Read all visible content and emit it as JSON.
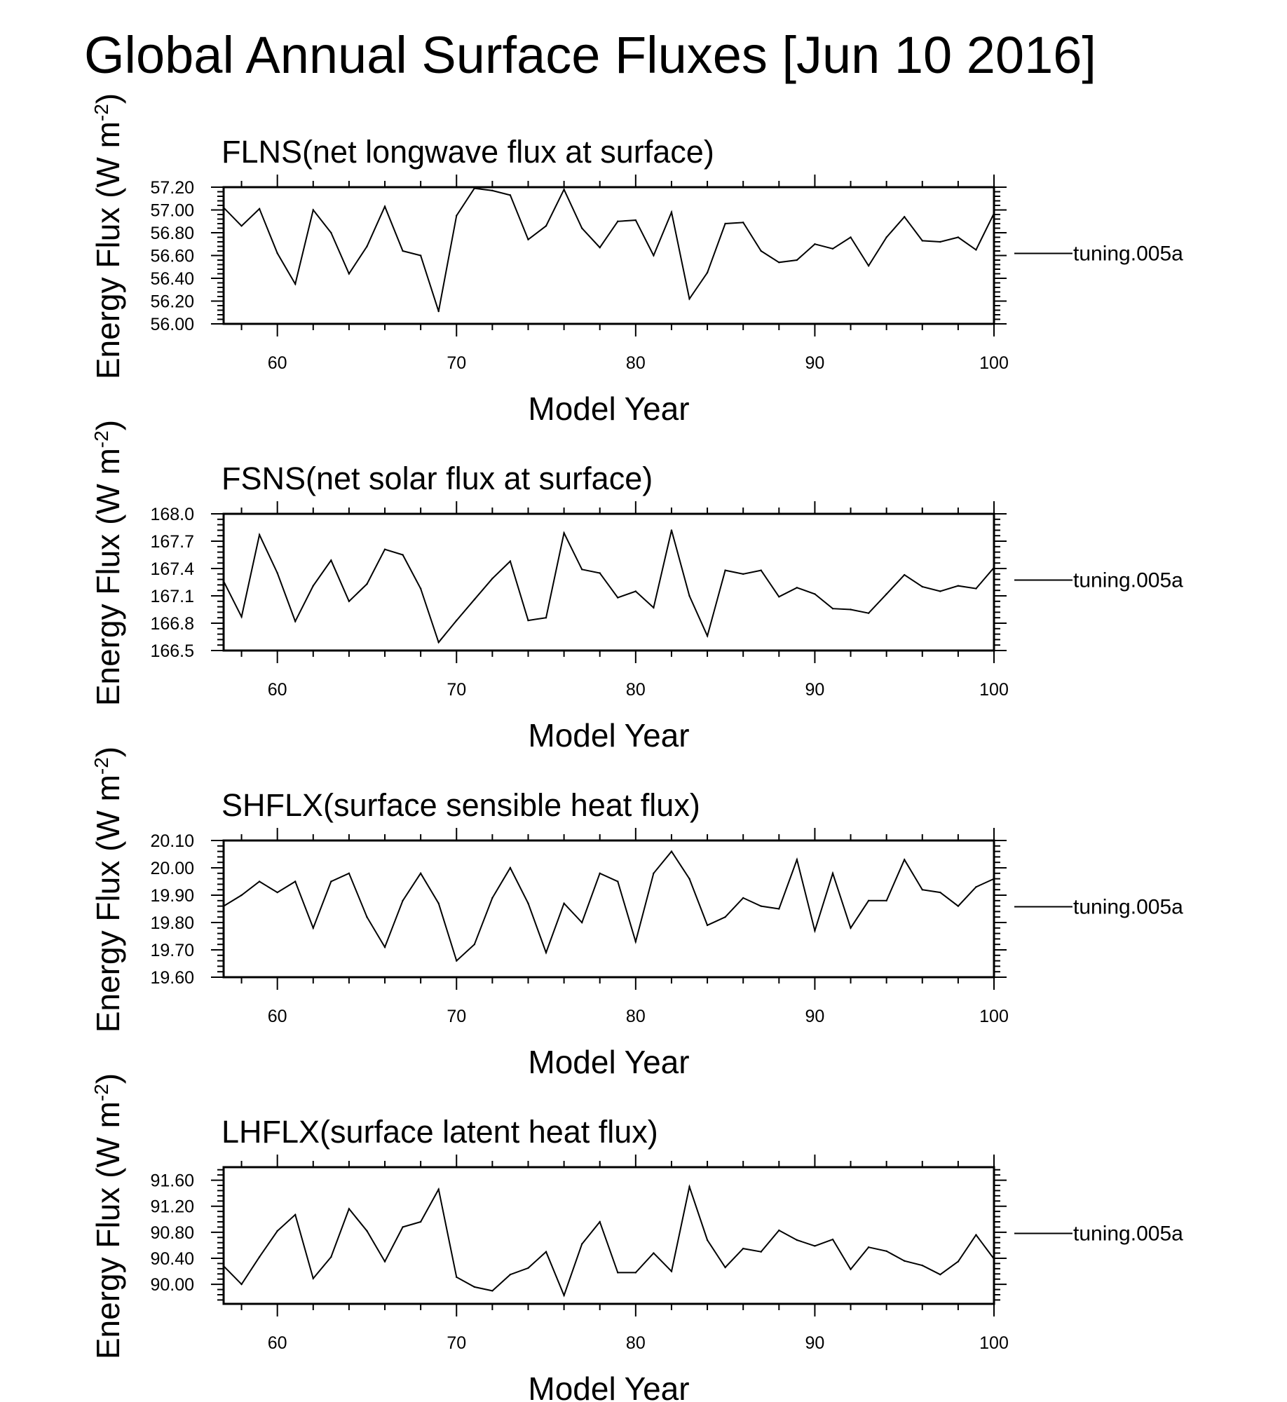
{
  "figure_title": "Global Annual Surface Fluxes [Jun 10 2016]",
  "chart_data": [
    {
      "type": "line",
      "title": "FLNS(net longwave flux at surface)",
      "xlabel": "Model Year",
      "ylabel": "Energy Flux (W m-2)",
      "xlim": [
        57,
        100
      ],
      "ylim": [
        56.0,
        57.2
      ],
      "xticks": [
        "60",
        "70",
        "80",
        "90",
        "100"
      ],
      "yticks": [
        "57.20",
        "57.00",
        "56.80",
        "56.60",
        "56.40",
        "56.20",
        "56.00"
      ],
      "series": [
        {
          "name": "tuning.005a",
          "x": [
            57,
            58,
            59,
            60,
            61,
            62,
            63,
            64,
            65,
            66,
            67,
            68,
            69,
            70,
            71,
            72,
            73,
            74,
            75,
            76,
            77,
            78,
            79,
            80,
            81,
            82,
            83,
            84,
            85,
            86,
            87,
            88,
            89,
            90,
            91,
            92,
            93,
            94,
            95,
            96,
            97,
            98,
            99,
            100
          ],
          "values": [
            57.02,
            56.86,
            57.01,
            56.62,
            56.35,
            57.0,
            56.8,
            56.44,
            56.68,
            57.03,
            56.64,
            56.6,
            56.11,
            56.95,
            57.19,
            57.17,
            57.13,
            56.74,
            56.86,
            57.18,
            56.84,
            56.67,
            56.9,
            56.91,
            56.6,
            56.98,
            56.22,
            56.45,
            56.88,
            56.89,
            56.64,
            56.54,
            56.56,
            56.7,
            56.66,
            56.76,
            56.51,
            56.76,
            56.94,
            56.73,
            56.72,
            56.76,
            56.65,
            56.97
          ]
        }
      ]
    },
    {
      "type": "line",
      "title": "FSNS(net solar flux at surface)",
      "xlabel": "Model Year",
      "ylabel": "Energy Flux (W m-2)",
      "xlim": [
        57,
        100
      ],
      "ylim": [
        166.5,
        168.0
      ],
      "xticks": [
        "60",
        "70",
        "80",
        "90",
        "100"
      ],
      "yticks": [
        "168.0",
        "167.7",
        "167.4",
        "167.1",
        "166.8",
        "166.5"
      ],
      "series": [
        {
          "name": "tuning.005a",
          "x": [
            57,
            58,
            59,
            60,
            61,
            62,
            63,
            64,
            65,
            66,
            67,
            68,
            69,
            70,
            71,
            72,
            73,
            74,
            75,
            76,
            77,
            78,
            79,
            80,
            81,
            82,
            83,
            84,
            85,
            86,
            87,
            88,
            89,
            90,
            91,
            92,
            93,
            94,
            95,
            96,
            97,
            98,
            99,
            100
          ],
          "values": [
            167.26,
            166.87,
            167.77,
            167.35,
            166.82,
            167.21,
            167.49,
            167.04,
            167.23,
            167.61,
            167.55,
            167.18,
            166.59,
            166.83,
            167.06,
            167.29,
            167.48,
            166.83,
            166.86,
            167.79,
            167.39,
            167.35,
            167.08,
            167.15,
            166.97,
            167.82,
            167.1,
            166.66,
            167.38,
            167.34,
            167.38,
            167.09,
            167.19,
            167.12,
            166.96,
            166.95,
            166.91,
            167.12,
            167.33,
            167.2,
            167.15,
            167.21,
            167.18,
            167.41
          ]
        }
      ]
    },
    {
      "type": "line",
      "title": "SHFLX(surface sensible heat flux)",
      "xlabel": "Model Year",
      "ylabel": "Energy Flux (W m-2)",
      "xlim": [
        57,
        100
      ],
      "ylim": [
        19.6,
        20.1
      ],
      "xticks": [
        "60",
        "70",
        "80",
        "90",
        "100"
      ],
      "yticks": [
        "20.10",
        "20.00",
        "19.90",
        "19.80",
        "19.70",
        "19.60"
      ],
      "series": [
        {
          "name": "tuning.005a",
          "x": [
            57,
            58,
            59,
            60,
            61,
            62,
            63,
            64,
            65,
            66,
            67,
            68,
            69,
            70,
            71,
            72,
            73,
            74,
            75,
            76,
            77,
            78,
            79,
            80,
            81,
            82,
            83,
            84,
            85,
            86,
            87,
            88,
            89,
            90,
            91,
            92,
            93,
            94,
            95,
            96,
            97,
            98,
            99,
            100
          ],
          "values": [
            19.86,
            19.9,
            19.95,
            19.91,
            19.95,
            19.78,
            19.95,
            19.98,
            19.82,
            19.71,
            19.88,
            19.98,
            19.87,
            19.66,
            19.72,
            19.89,
            20.0,
            19.87,
            19.69,
            19.87,
            19.8,
            19.98,
            19.95,
            19.73,
            19.98,
            20.06,
            19.96,
            19.79,
            19.82,
            19.89,
            19.86,
            19.85,
            20.03,
            19.77,
            19.98,
            19.78,
            19.88,
            19.88,
            20.03,
            19.92,
            19.91,
            19.86,
            19.93,
            19.96
          ]
        }
      ]
    },
    {
      "type": "line",
      "title": "LHFLX(surface latent heat flux)",
      "xlabel": "Model Year",
      "ylabel": "Energy Flux (W m-2)",
      "xlim": [
        57,
        100
      ],
      "ylim": [
        89.7,
        91.8
      ],
      "xticks": [
        "60",
        "70",
        "80",
        "90",
        "100"
      ],
      "yticks": [
        "91.60",
        "91.20",
        "90.80",
        "90.40",
        "90.00"
      ],
      "series": [
        {
          "name": "tuning.005a",
          "x": [
            57,
            58,
            59,
            60,
            61,
            62,
            63,
            64,
            65,
            66,
            67,
            68,
            69,
            70,
            71,
            72,
            73,
            74,
            75,
            76,
            77,
            78,
            79,
            80,
            81,
            82,
            83,
            84,
            85,
            86,
            87,
            88,
            89,
            90,
            91,
            92,
            93,
            94,
            95,
            96,
            97,
            98,
            99,
            100
          ],
          "values": [
            90.28,
            90.0,
            90.42,
            90.82,
            91.07,
            90.09,
            90.42,
            91.16,
            90.82,
            90.35,
            90.88,
            90.96,
            91.46,
            90.11,
            89.96,
            89.9,
            90.15,
            90.25,
            90.5,
            89.83,
            90.62,
            90.96,
            90.18,
            90.18,
            90.48,
            90.2,
            91.5,
            90.68,
            90.26,
            90.55,
            90.5,
            90.83,
            90.68,
            90.59,
            90.69,
            90.23,
            90.57,
            90.51,
            90.36,
            90.29,
            90.15,
            90.35,
            90.76,
            90.39
          ]
        }
      ]
    }
  ]
}
